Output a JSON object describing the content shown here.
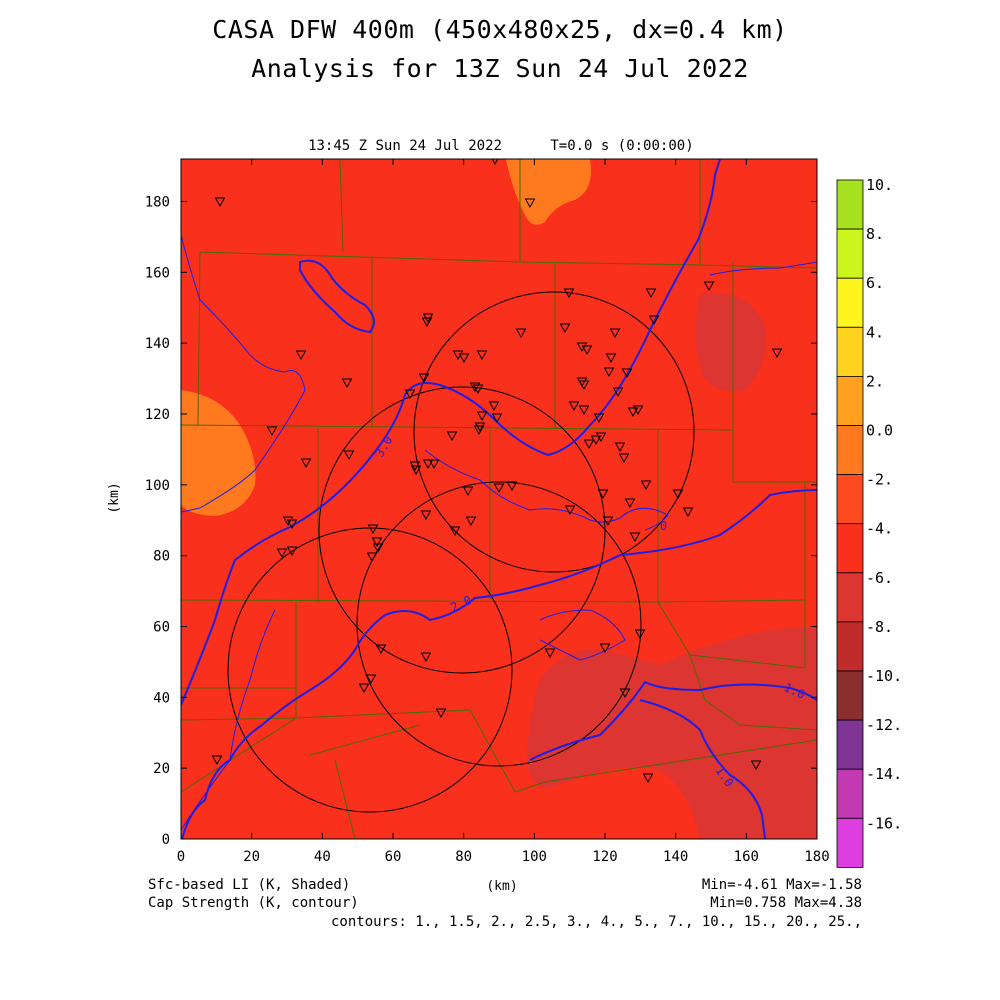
{
  "header": {
    "title_line1": "CASA DFW 400m (450x480x25, dx=0.4 km)",
    "title_line2": "Analysis for 13Z Sun 24 Jul 2022",
    "valid_time": "13:45 Z Sun 24 Jul 2022",
    "model_time": "T=0.0 s (0:00:00)"
  },
  "axes": {
    "x_label": "(km)",
    "y_label": "(km)",
    "x_ticks": [
      "0",
      "20",
      "40",
      "60",
      "80",
      "100",
      "120",
      "140",
      "160",
      "180"
    ],
    "y_ticks": [
      "0",
      "20",
      "40",
      "60",
      "80",
      "100",
      "120",
      "140",
      "160",
      "180"
    ],
    "x_range_km": [
      0,
      180
    ],
    "y_range_km": [
      0,
      192
    ]
  },
  "colorbar": {
    "labels": [
      "10.",
      "8.",
      "6.",
      "4.",
      "2.",
      "0.0",
      "-2.",
      "-4.",
      "-6.",
      "-8.",
      "-10.",
      "-12.",
      "-14.",
      "-16."
    ],
    "colors": [
      "#a6e01e",
      "#ccf51e",
      "#fff51e",
      "#ffd21e",
      "#ffa01e",
      "#ff7a1e",
      "#fe4a1f",
      "#f9301c",
      "#dc3532",
      "#c02c2c",
      "#8a2f2f",
      "#7e3493",
      "#c23ab2",
      "#dc3ee0"
    ]
  },
  "footer": {
    "field1": "Sfc-based LI (K, Shaded)",
    "field2": "Cap Strength (K, contour)",
    "units": "(km)",
    "range1": "Min=-4.61 Max=-1.58",
    "range2": "Min=0.758 Max=4.38",
    "contours": "contours: 1., 1.5, 2., 2.5, 3., 4., 5., 7., 10., 15., 20., 25.,"
  },
  "contour_labels": [
    "3.0",
    "2.0",
    "1.0",
    "1.0",
    "0"
  ],
  "map": {
    "background_color": "#f9301c",
    "contour_color": "#1e1ee6",
    "county_line_color": "#4a6a00",
    "radar_ring_color": "#000000"
  }
}
